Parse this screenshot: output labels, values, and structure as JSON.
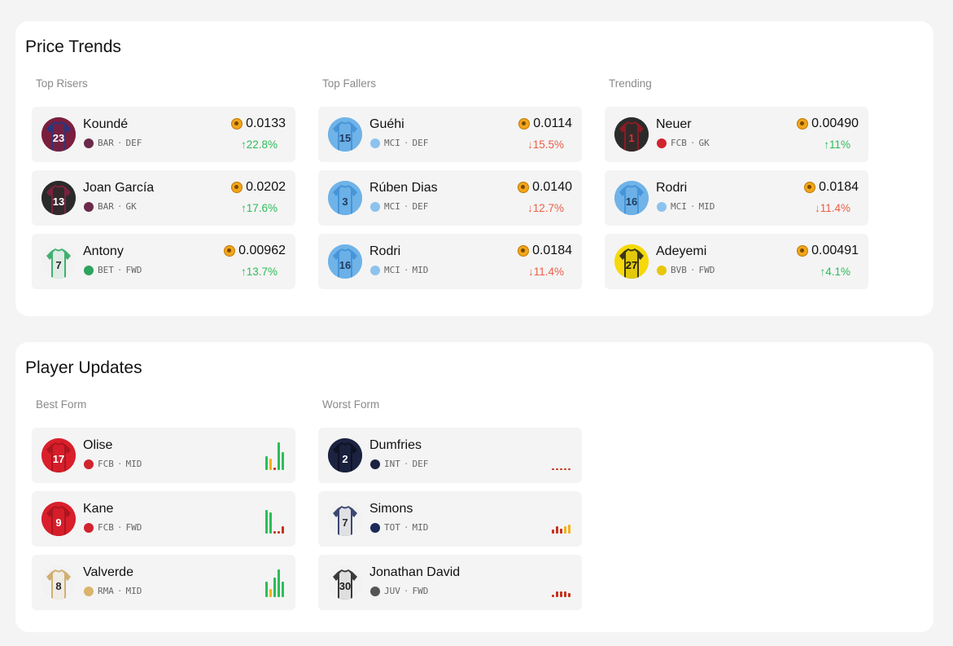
{
  "price_trends": {
    "title": "Price Trends",
    "columns": [
      {
        "title": "Top Risers",
        "players": [
          {
            "name": "Koundé",
            "club": "BAR",
            "position": "DEF",
            "shirt_number": "23",
            "price": "0.0133",
            "change": "22.8%",
            "direction": "up",
            "kit": {
              "primary": "#7a1f3d",
              "secondary": "#1d3a8a",
              "number_color": "#ffffff"
            },
            "club_color": "#6b2a4a"
          },
          {
            "name": "Joan García",
            "club": "BAR",
            "position": "GK",
            "shirt_number": "13",
            "price": "0.0202",
            "change": "17.6%",
            "direction": "up",
            "kit": {
              "primary": "#2a2a2a",
              "secondary": "#8a2040",
              "number_color": "#ffffff"
            },
            "club_color": "#6b2a4a"
          },
          {
            "name": "Antony",
            "club": "BET",
            "position": "FWD",
            "shirt_number": "7",
            "price": "0.00962",
            "change": "13.7%",
            "direction": "up",
            "kit": {
              "primary": "#f2f2f2",
              "secondary": "#21a65a",
              "number_color": "#2a2a2a"
            },
            "club_color": "#2ea45e"
          }
        ]
      },
      {
        "title": "Top Fallers",
        "players": [
          {
            "name": "Guéhi",
            "club": "MCI",
            "position": "DEF",
            "shirt_number": "15",
            "price": "0.0114",
            "change": "15.5%",
            "direction": "down",
            "kit": {
              "primary": "#6fb3e8",
              "secondary": "#3f8ed6",
              "number_color": "#1e3a5f"
            },
            "club_color": "#8dc2ee"
          },
          {
            "name": "Rúben Dias",
            "club": "MCI",
            "position": "DEF",
            "shirt_number": "3",
            "price": "0.0140",
            "change": "12.7%",
            "direction": "down",
            "kit": {
              "primary": "#6fb3e8",
              "secondary": "#3f8ed6",
              "number_color": "#1e3a5f"
            },
            "club_color": "#8dc2ee"
          },
          {
            "name": "Rodri",
            "club": "MCI",
            "position": "MID",
            "shirt_number": "16",
            "price": "0.0184",
            "change": "11.4%",
            "direction": "down",
            "kit": {
              "primary": "#6fb3e8",
              "secondary": "#3f8ed6",
              "number_color": "#1e3a5f"
            },
            "club_color": "#8dc2ee"
          }
        ]
      },
      {
        "title": "Trending",
        "players": [
          {
            "name": "Neuer",
            "club": "FCB",
            "position": "GK",
            "shirt_number": "1",
            "price": "0.00490",
            "change": "11%",
            "direction": "up",
            "kit": {
              "primary": "#2b2b2b",
              "secondary": "#9a1a22",
              "number_color": "#e03030"
            },
            "club_color": "#d0242e"
          },
          {
            "name": "Rodri",
            "club": "MCI",
            "position": "MID",
            "shirt_number": "16",
            "price": "0.0184",
            "change": "11.4%",
            "direction": "down",
            "kit": {
              "primary": "#6fb3e8",
              "secondary": "#3f8ed6",
              "number_color": "#1e3a5f"
            },
            "club_color": "#8dc2ee"
          },
          {
            "name": "Adeyemi",
            "club": "BVB",
            "position": "FWD",
            "shirt_number": "27",
            "price": "0.00491",
            "change": "4.1%",
            "direction": "up",
            "kit": {
              "primary": "#f5d90a",
              "secondary": "#1a1a1a",
              "number_color": "#1a1a1a"
            },
            "club_color": "#e8c60a"
          }
        ]
      }
    ]
  },
  "player_updates": {
    "title": "Player Updates",
    "columns": [
      {
        "title": "Best Form",
        "players": [
          {
            "name": "Olise",
            "club": "FCB",
            "position": "MID",
            "shirt_number": "17",
            "kit": {
              "primary": "#d91f2b",
              "secondary": "#a5141d",
              "number_color": "#ffffff"
            },
            "club_color": "#d0242e",
            "form": [
              {
                "value": 0.5,
                "level": "good"
              },
              {
                "value": 0.4,
                "level": "ok"
              },
              {
                "value": 0.1,
                "level": "bad"
              },
              {
                "value": 1.0,
                "level": "good"
              },
              {
                "value": 0.65,
                "level": "good"
              }
            ]
          },
          {
            "name": "Kane",
            "club": "FCB",
            "position": "FWD",
            "shirt_number": "9",
            "kit": {
              "primary": "#d91f2b",
              "secondary": "#a5141d",
              "number_color": "#ffffff"
            },
            "club_color": "#d0242e",
            "form": [
              {
                "value": 0.85,
                "level": "good"
              },
              {
                "value": 0.75,
                "level": "good"
              },
              {
                "value": 0.1,
                "level": "bad"
              },
              {
                "value": 0.08,
                "level": "bad"
              },
              {
                "value": 0.25,
                "level": "bad"
              }
            ]
          },
          {
            "name": "Valverde",
            "club": "RMA",
            "position": "MID",
            "shirt_number": "8",
            "kit": {
              "primary": "#f2f2f2",
              "secondary": "#c9a45c",
              "number_color": "#2a2a2a"
            },
            "club_color": "#d9b46a",
            "form": [
              {
                "value": 0.55,
                "level": "good"
              },
              {
                "value": 0.3,
                "level": "ok"
              },
              {
                "value": 0.7,
                "level": "good"
              },
              {
                "value": 1.0,
                "level": "good"
              },
              {
                "value": 0.55,
                "level": "good"
              }
            ]
          }
        ]
      },
      {
        "title": "Worst Form",
        "players": [
          {
            "name": "Dumfries",
            "club": "INT",
            "position": "DEF",
            "shirt_number": "2",
            "kit": {
              "primary": "#1c2340",
              "secondary": "#0c0f1e",
              "number_color": "#ffffff"
            },
            "club_color": "#1c2340",
            "form": [
              {
                "value": 0.06,
                "level": "bad"
              },
              {
                "value": 0.06,
                "level": "bad"
              },
              {
                "value": 0.06,
                "level": "bad"
              },
              {
                "value": 0.06,
                "level": "bad"
              },
              {
                "value": 0.06,
                "level": "bad"
              }
            ]
          },
          {
            "name": "Simons",
            "club": "TOT",
            "position": "MID",
            "shirt_number": "7",
            "kit": {
              "primary": "#f2f2f2",
              "secondary": "#1c2a5a",
              "number_color": "#2a2a2a"
            },
            "club_color": "#1c2a5a",
            "form": [
              {
                "value": 0.15,
                "level": "bad"
              },
              {
                "value": 0.25,
                "level": "bad"
              },
              {
                "value": 0.18,
                "level": "bad"
              },
              {
                "value": 0.25,
                "level": "ok"
              },
              {
                "value": 0.32,
                "level": "ok"
              }
            ]
          },
          {
            "name": "Jonathan David",
            "club": "JUV",
            "position": "FWD",
            "shirt_number": "30",
            "kit": {
              "primary": "#f2f2f2",
              "secondary": "#1a1a1a",
              "number_color": "#1a1a1a"
            },
            "club_color": "#555555",
            "form": [
              {
                "value": 0.08,
                "level": "bad"
              },
              {
                "value": 0.2,
                "level": "bad"
              },
              {
                "value": 0.22,
                "level": "bad"
              },
              {
                "value": 0.2,
                "level": "bad"
              },
              {
                "value": 0.15,
                "level": "bad"
              }
            ]
          }
        ]
      }
    ]
  },
  "colors": {
    "up": "#2ebd59",
    "down": "#ec5d47",
    "form_good": "#2ebd59",
    "form_ok": "#f2b01e",
    "form_bad": "#c8321e",
    "coin": "#f2a51a"
  },
  "symbols": {
    "up_arrow": "↑",
    "down_arrow": "↓",
    "separator": "·"
  }
}
